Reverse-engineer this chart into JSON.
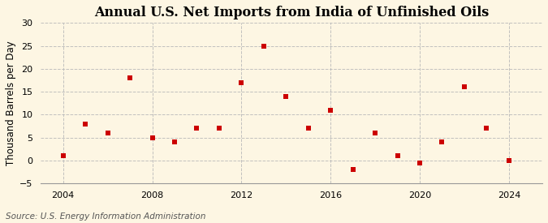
{
  "title": "Annual U.S. Net Imports from India of Unfinished Oils",
  "ylabel": "Thousand Barrels per Day",
  "source": "Source: U.S. Energy Information Administration",
  "years": [
    2004,
    2005,
    2006,
    2007,
    2008,
    2009,
    2010,
    2011,
    2012,
    2013,
    2014,
    2015,
    2016,
    2017,
    2018,
    2019,
    2020,
    2021,
    2022,
    2023,
    2024
  ],
  "values": [
    1,
    8,
    6,
    18,
    5,
    4,
    7,
    7,
    17,
    25,
    14,
    7,
    11,
    -2,
    6,
    1,
    -0.5,
    4,
    16,
    7,
    0
  ],
  "marker_color": "#cc0000",
  "marker_size": 4,
  "bg_color": "#fdf6e3",
  "plot_bg_color": "#fdf6e3",
  "grid_color": "#bbbbbb",
  "ylim": [
    -5,
    30
  ],
  "yticks": [
    -5,
    0,
    5,
    10,
    15,
    20,
    25,
    30
  ],
  "xticks": [
    2004,
    2008,
    2012,
    2016,
    2020,
    2024
  ],
  "xlim": [
    2003,
    2025.5
  ],
  "title_fontsize": 11.5,
  "label_fontsize": 8.5,
  "tick_fontsize": 8,
  "source_fontsize": 7.5
}
